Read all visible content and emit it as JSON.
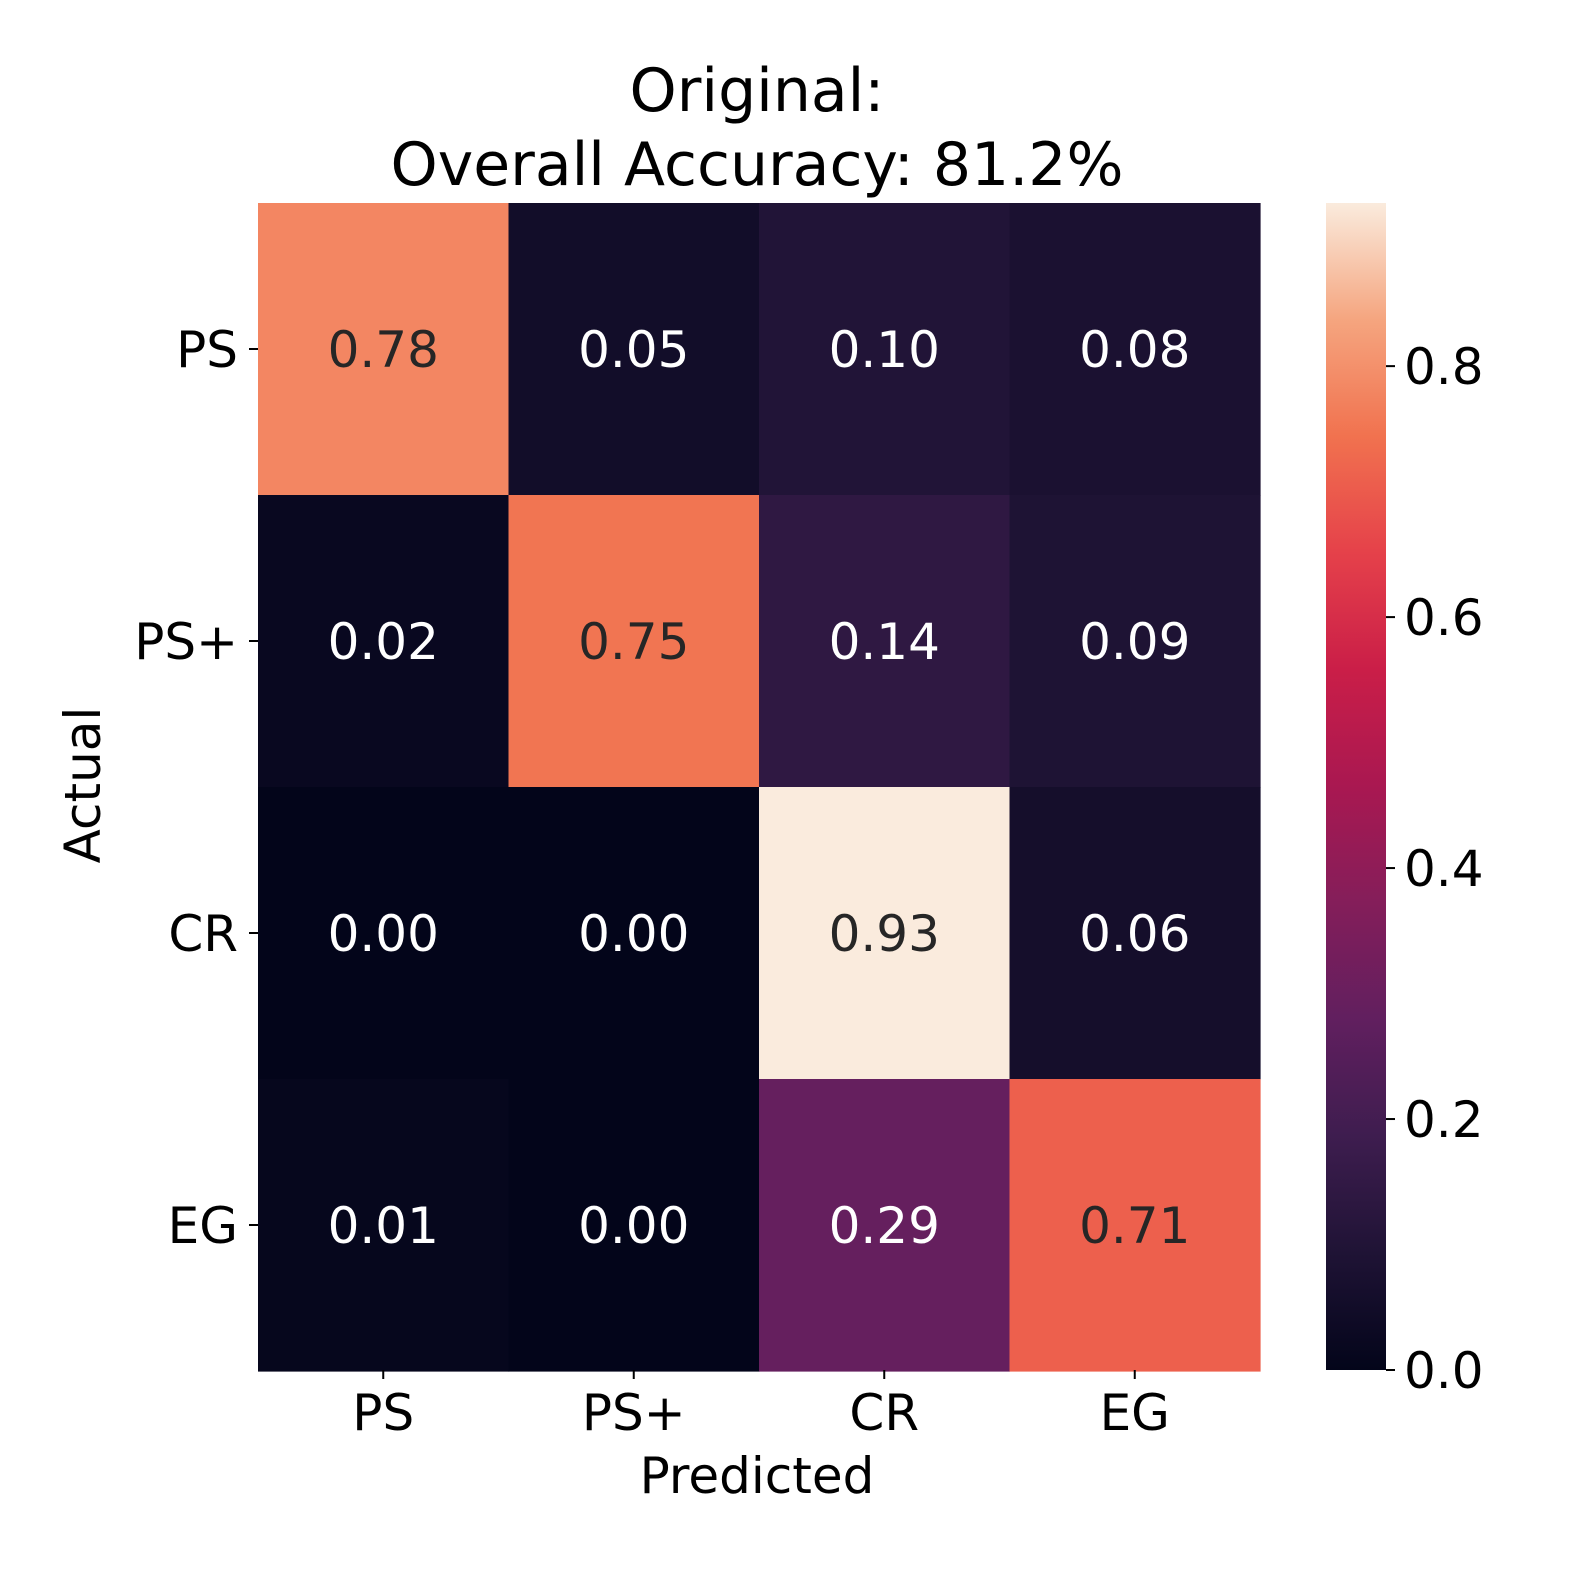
{
  "chart_data": {
    "type": "heatmap",
    "title_lines": [
      "Original:",
      "Overall Accuracy: 81.2%"
    ],
    "xlabel": "Predicted",
    "ylabel": "Actual",
    "x_categories": [
      "PS",
      "PS+",
      "CR",
      "EG"
    ],
    "y_categories": [
      "PS",
      "PS+",
      "CR",
      "EG"
    ],
    "values": [
      [
        0.78,
        0.05,
        0.1,
        0.08
      ],
      [
        0.02,
        0.75,
        0.14,
        0.09
      ],
      [
        0.0,
        0.0,
        0.93,
        0.06
      ],
      [
        0.01,
        0.0,
        0.29,
        0.71
      ]
    ],
    "cell_labels": [
      [
        "0.78",
        "0.05",
        "0.10",
        "0.08"
      ],
      [
        "0.02",
        "0.75",
        "0.14",
        "0.09"
      ],
      [
        "0.00",
        "0.00",
        "0.93",
        "0.06"
      ],
      [
        "0.01",
        "0.00",
        "0.29",
        "0.71"
      ]
    ],
    "colormap": "rocket",
    "vmin": 0.0,
    "vmax": 0.93,
    "colorbar_ticks": [
      0.0,
      0.2,
      0.4,
      0.6,
      0.8
    ],
    "colorbar_tick_labels": [
      "0.0",
      "0.2",
      "0.4",
      "0.6",
      "0.8"
    ],
    "annotation_colors": {
      "light_bg": "#262626",
      "dark_bg": "#ffffff"
    },
    "grid": false,
    "legend": "colorbar-right"
  }
}
